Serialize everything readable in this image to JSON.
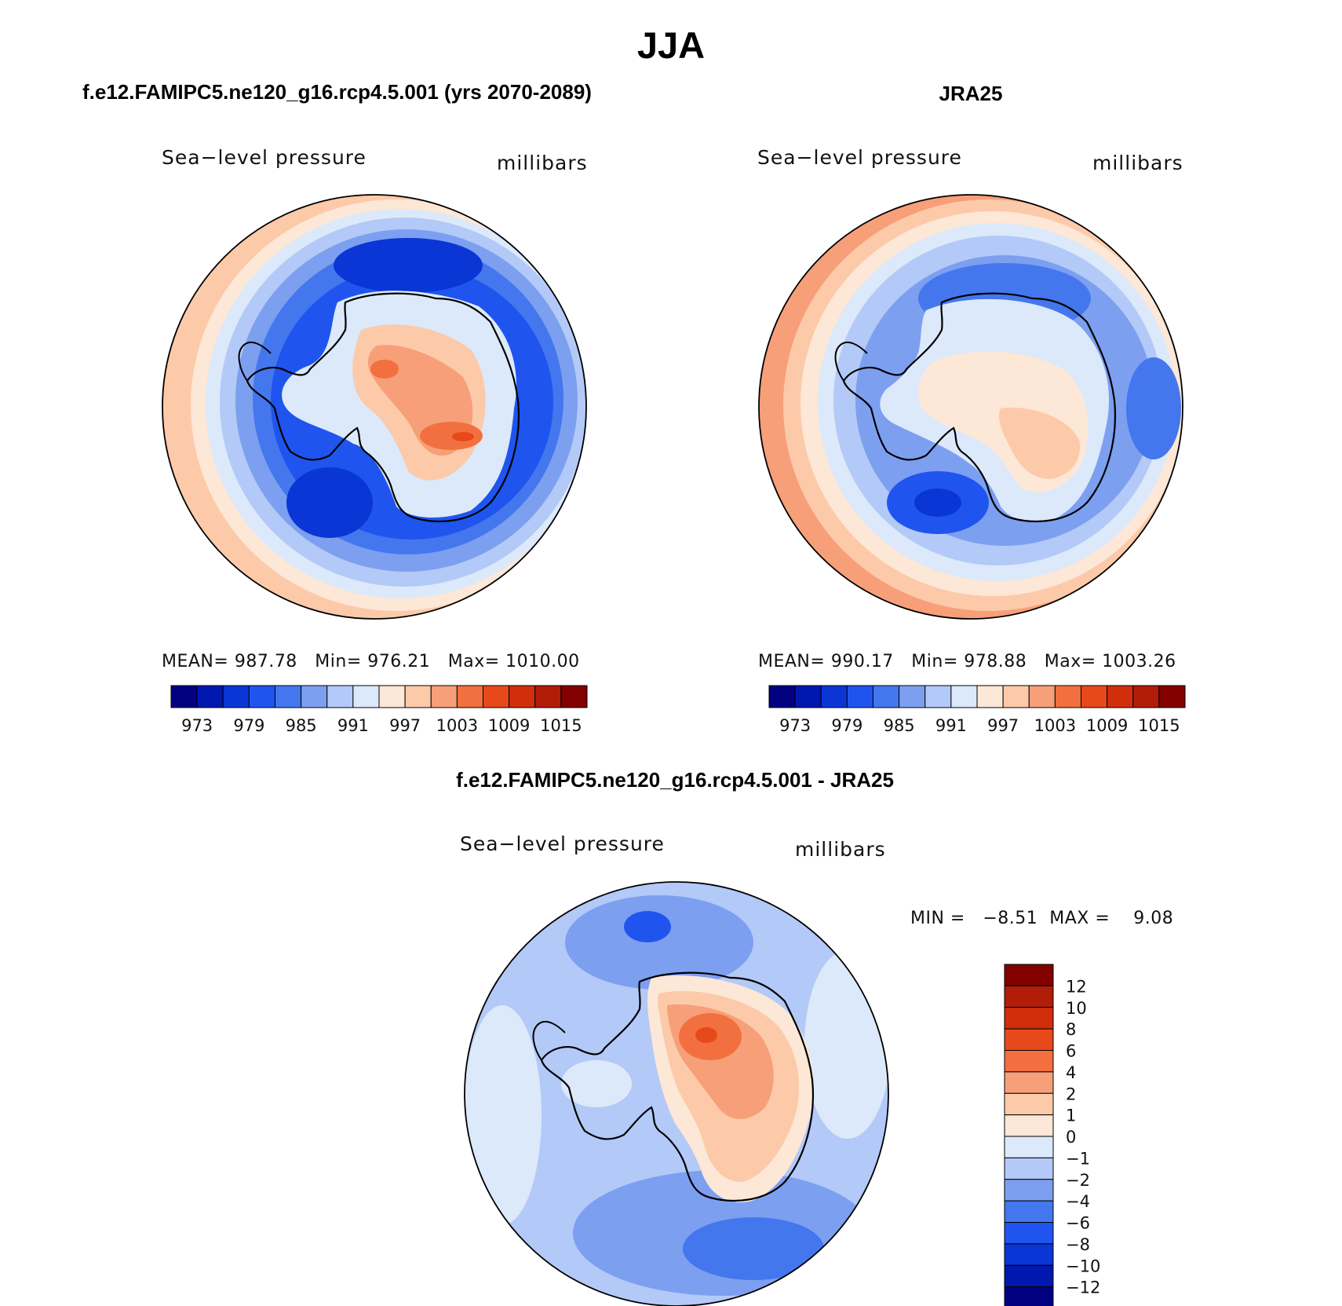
{
  "page": {
    "title": "JJA",
    "colors": {
      "absolute_scale": [
        "#000080",
        "#0018b0",
        "#0a36d6",
        "#1f55ee",
        "#4477ee",
        "#7d9ff0",
        "#b3c9f7",
        "#dce9fa",
        "#fde7d6",
        "#fccaa9",
        "#f79f79",
        "#f2703f",
        "#e8491a",
        "#d22e0c",
        "#b21d09",
        "#820000"
      ],
      "diff_scale": [
        "#000080",
        "#0018b0",
        "#0a36d6",
        "#1f55ee",
        "#4477ee",
        "#7d9ff0",
        "#b3c9f7",
        "#dce9fa",
        "#fde7d6",
        "#fccaa9",
        "#f79f79",
        "#f2703f",
        "#e8491a",
        "#d22e0c",
        "#b21d09",
        "#820000"
      ],
      "map_edge": "#000000"
    }
  },
  "chart_data": [
    {
      "type": "heatmap",
      "projection": "south-polar-stereographic",
      "title": "f.e12.FAMIPC5.ne120_g16.rcp4.5.001 (yrs 2070-2089)",
      "variable_label": "Sea−level pressure",
      "units_label": "millibars",
      "stats": {
        "mean_label": "MEAN=",
        "mean": "987.78",
        "min_label": "Min=",
        "min": "976.21",
        "max_label": "Max=",
        "max": "1010.00"
      },
      "colorbar": {
        "orientation": "horizontal",
        "levels": [
          970,
          973,
          976,
          979,
          982,
          985,
          988,
          991,
          994,
          997,
          1000,
          1003,
          1006,
          1009,
          1012,
          1015
        ],
        "tick_labels": [
          "973",
          "979",
          "985",
          "991",
          "997",
          "1003",
          "1009",
          "1015"
        ]
      }
    },
    {
      "type": "heatmap",
      "projection": "south-polar-stereographic",
      "title": "JRA25",
      "variable_label": "Sea−level pressure",
      "units_label": "millibars",
      "stats": {
        "mean_label": "MEAN=",
        "mean": "990.17",
        "min_label": "Min=",
        "min": "978.88",
        "max_label": "Max=",
        "max": "1003.26"
      },
      "colorbar": {
        "orientation": "horizontal",
        "levels": [
          970,
          973,
          976,
          979,
          982,
          985,
          988,
          991,
          994,
          997,
          1000,
          1003,
          1006,
          1009,
          1012,
          1015
        ],
        "tick_labels": [
          "973",
          "979",
          "985",
          "991",
          "997",
          "1003",
          "1009",
          "1015"
        ]
      }
    },
    {
      "type": "heatmap",
      "projection": "south-polar-stereographic",
      "title": "f.e12.FAMIPC5.ne120_g16.rcp4.5.001 - JRA25",
      "variable_label": "Sea−level pressure",
      "units_label": "millibars",
      "stats": {
        "min_label": "MIN =",
        "min": "−8.51",
        "max_label": "MAX =",
        "max": "9.08"
      },
      "colorbar": {
        "orientation": "vertical",
        "levels": [
          -14,
          -12,
          -10,
          -8,
          -6,
          -4,
          -2,
          -1,
          0,
          1,
          2,
          4,
          6,
          8,
          10,
          12
        ],
        "tick_labels": [
          "12",
          "10",
          "8",
          "6",
          "4",
          "2",
          "1",
          "0",
          "−1",
          "−2",
          "−4",
          "−6",
          "−8",
          "−10",
          "−12"
        ]
      }
    }
  ]
}
